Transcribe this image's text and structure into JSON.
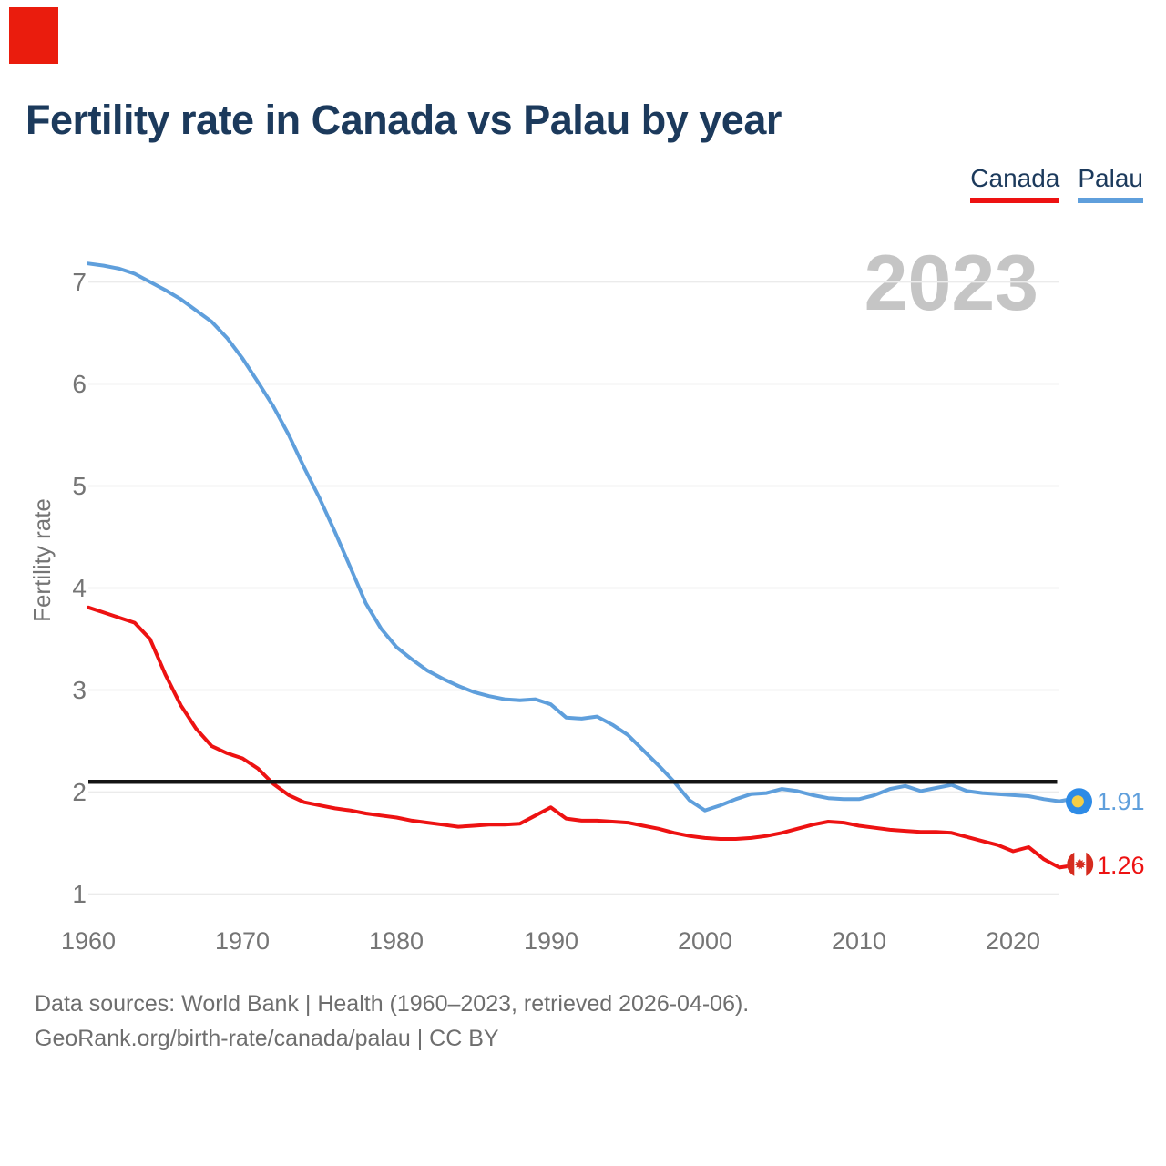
{
  "marker": {
    "color": "#ea1c0d"
  },
  "title": "Fertility rate in Canada vs Palau by year",
  "legend": {
    "items": [
      {
        "label": "Canada",
        "color": "#ed1212"
      },
      {
        "label": "Palau",
        "color": "#5f9fdc"
      }
    ]
  },
  "watermark_year": "2023",
  "chart_data": {
    "type": "line",
    "title": "Fertility rate in Canada vs Palau by year",
    "xlabel": "",
    "ylabel": "Fertility rate",
    "xlim": [
      1960,
      2023
    ],
    "ylim": [
      0.8,
      7.4
    ],
    "grid": "horizontal",
    "legend_position": "top-right",
    "yticks": [
      7,
      6,
      5,
      4,
      3,
      2,
      1
    ],
    "xticks": [
      1960,
      1970,
      1980,
      1990,
      2000,
      2010,
      2020
    ],
    "x": [
      1960,
      1961,
      1962,
      1963,
      1964,
      1965,
      1966,
      1967,
      1968,
      1969,
      1970,
      1971,
      1972,
      1973,
      1974,
      1975,
      1976,
      1977,
      1978,
      1979,
      1980,
      1981,
      1982,
      1983,
      1984,
      1985,
      1986,
      1987,
      1988,
      1989,
      1990,
      1991,
      1992,
      1993,
      1994,
      1995,
      1996,
      1997,
      1998,
      1999,
      2000,
      2001,
      2002,
      2003,
      2004,
      2005,
      2006,
      2007,
      2008,
      2009,
      2010,
      2011,
      2012,
      2013,
      2014,
      2015,
      2016,
      2017,
      2018,
      2019,
      2020,
      2021,
      2022,
      2023
    ],
    "series": [
      {
        "id": "palau",
        "name": "Palau",
        "color": "#5f9fdc",
        "values": [
          7.18,
          7.16,
          7.13,
          7.08,
          7.0,
          6.92,
          6.83,
          6.72,
          6.61,
          6.45,
          6.25,
          6.02,
          5.78,
          5.5,
          5.18,
          4.88,
          4.55,
          4.2,
          3.85,
          3.6,
          3.42,
          3.3,
          3.19,
          3.11,
          3.04,
          2.98,
          2.94,
          2.91,
          2.9,
          2.91,
          2.86,
          2.73,
          2.72,
          2.74,
          2.66,
          2.56,
          2.41,
          2.26,
          2.1,
          1.92,
          1.82,
          1.87,
          1.93,
          1.98,
          1.99,
          2.03,
          2.01,
          1.97,
          1.94,
          1.93,
          1.93,
          1.97,
          2.03,
          2.06,
          2.01,
          2.04,
          2.07,
          2.01,
          1.99,
          1.98,
          1.97,
          1.96,
          1.93,
          1.91
        ]
      },
      {
        "id": "canada",
        "name": "Canada",
        "color": "#ed1212",
        "values": [
          3.81,
          3.76,
          3.71,
          3.66,
          3.5,
          3.15,
          2.85,
          2.62,
          2.45,
          2.38,
          2.33,
          2.23,
          2.08,
          1.97,
          1.9,
          1.87,
          1.84,
          1.82,
          1.79,
          1.77,
          1.75,
          1.72,
          1.7,
          1.68,
          1.66,
          1.67,
          1.68,
          1.68,
          1.69,
          1.77,
          1.85,
          1.74,
          1.72,
          1.72,
          1.71,
          1.7,
          1.67,
          1.64,
          1.6,
          1.57,
          1.55,
          1.54,
          1.54,
          1.55,
          1.57,
          1.6,
          1.64,
          1.68,
          1.71,
          1.7,
          1.67,
          1.65,
          1.63,
          1.62,
          1.61,
          1.61,
          1.6,
          1.56,
          1.52,
          1.48,
          1.42,
          1.46,
          1.34,
          1.26
        ]
      }
    ],
    "reference_line": {
      "value": 2.1,
      "color": "#141414"
    },
    "end_labels": {
      "palau": {
        "value": "1.91",
        "year": "2023",
        "flag_colors": {
          "blue": "#2e8be6",
          "yellow": "#f6ce46"
        }
      },
      "canada": {
        "value": "1.26",
        "year": "2023",
        "flag_colors": {
          "red": "#d52b1e",
          "white": "#ffffff"
        }
      }
    }
  },
  "footer": {
    "line1": "Data sources: World Bank | Health (1960–2023, retrieved 2026-04-06).",
    "line2": "GeoRank.org/birth-rate/canada/palau | CC BY"
  }
}
